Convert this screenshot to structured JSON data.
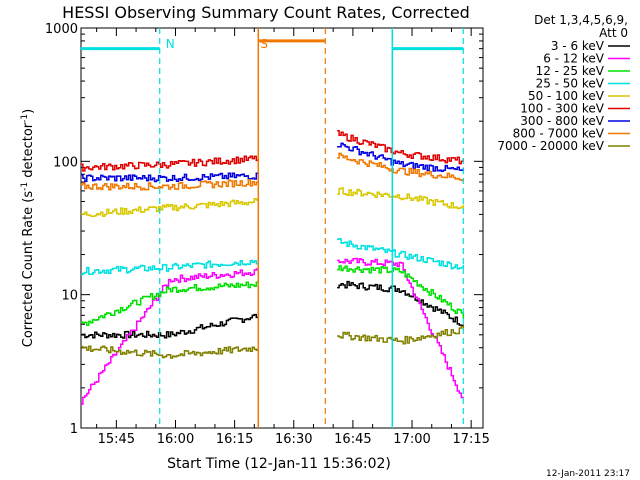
{
  "chart_data": {
    "type": "line",
    "title": "HESSI Observing Summary Count Rates, Corrected",
    "xlabel": "Start Time (12-Jan-11 15:36:02)",
    "ylabel_main": "Corrected Count Rate (s",
    "ylabel_sup1": "-1",
    "ylabel_mid": " detector",
    "ylabel_sup2": "-1",
    "ylabel_end": ")",
    "y_scale": "log",
    "ylim": [
      1,
      1000
    ],
    "xlim": [
      "15:36:02",
      "17:18:00"
    ],
    "xticks": [
      "15:45",
      "16:00",
      "16:15",
      "16:30",
      "16:45",
      "17:00",
      "17:15"
    ],
    "yticks": [
      "1",
      "10",
      "100",
      "1000"
    ],
    "grid": false,
    "legend_position": "top-right",
    "legend_title_line1": "Det 1,3,4,5,6,9,",
    "legend_title_line2": "Att 0",
    "footer_timestamp": "12-Jan-2011 23:17",
    "annotations": [
      {
        "label": "N",
        "color": "#00e0e0",
        "text_at": "15:56",
        "dashed_at": "15:56",
        "solid_from": "15:36",
        "solid_to": "15:56",
        "solid_level": 700
      },
      {
        "label": "S",
        "color": "#f07800",
        "text_at": "16:20",
        "solid_line_at": "16:21",
        "dashed_at": "16:38",
        "bar_from": "16:21",
        "bar_to": "16:38",
        "bar_level": 800
      },
      {
        "label": "",
        "color": "#00e0e0",
        "text_at": "",
        "solid_line_at": "16:55",
        "dashed_at": "17:13",
        "bar_from": "16:55",
        "bar_to": "17:13",
        "bar_level": 700
      }
    ],
    "segments": [
      {
        "start": "15:36",
        "end": "16:21"
      },
      {
        "start": "16:41",
        "end": "17:13"
      }
    ],
    "series": [
      {
        "name": "3 - 6 keV",
        "color": "#000000",
        "values": [
          [
            5,
            5,
            7
          ],
          [
            12,
            11,
            6
          ]
        ]
      },
      {
        "name": "6 - 12 keV",
        "color": "#ff00ff",
        "values": [
          [
            1.6,
            13,
            15
          ],
          [
            18,
            17,
            1.6
          ]
        ]
      },
      {
        "name": "12 - 25 keV",
        "color": "#00e000",
        "values": [
          [
            6,
            11,
            12
          ],
          [
            16,
            15,
            7
          ]
        ]
      },
      {
        "name": "25 - 50 keV",
        "color": "#00e0e0",
        "values": [
          [
            15,
            16,
            18
          ],
          [
            25,
            20,
            16
          ]
        ]
      },
      {
        "name": "50 - 100 keV",
        "color": "#d8c800",
        "values": [
          [
            40,
            45,
            50
          ],
          [
            60,
            55,
            45
          ]
        ]
      },
      {
        "name": "100 - 300 keV",
        "color": "#e00000",
        "values": [
          [
            90,
            95,
            105
          ],
          [
            160,
            115,
            100
          ]
        ]
      },
      {
        "name": "300 - 800 keV",
        "color": "#0000e0",
        "values": [
          [
            75,
            75,
            78
          ],
          [
            135,
            95,
            85
          ]
        ]
      },
      {
        "name": "800 - 7000 keV",
        "color": "#f07800",
        "values": [
          [
            65,
            65,
            70
          ],
          [
            110,
            85,
            75
          ]
        ]
      },
      {
        "name": "7000 - 20000 keV",
        "color": "#808000",
        "values": [
          [
            4,
            3.5,
            4
          ],
          [
            5,
            4.5,
            5.5
          ]
        ]
      }
    ]
  }
}
